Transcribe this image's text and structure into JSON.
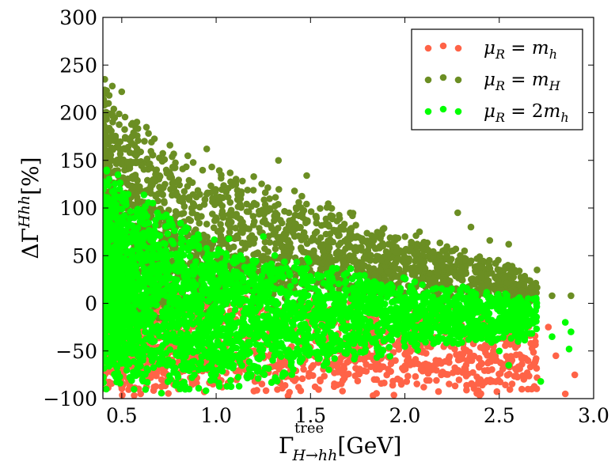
{
  "chart_data": {
    "type": "scatter",
    "title": "",
    "xlabel": "Γ^tree_{H→hh}[GeV]",
    "xlabel_main": "Γ",
    "xlabel_sup": "tree",
    "xlabel_sub": "H→hh",
    "xlabel_unit": "[GeV]",
    "ylabel": "ΔΓ^{Hhh}[%]",
    "ylabel_main": "ΔΓ",
    "ylabel_sup": "Hhh",
    "ylabel_unit": "[%]",
    "xlim": [
      0.4,
      3.0
    ],
    "ylim": [
      -100,
      300
    ],
    "xticks": [
      0.5,
      1.0,
      1.5,
      2.0,
      2.5,
      3.0
    ],
    "xtick_labels": [
      "0.5",
      "1.0",
      "1.5",
      "2.0",
      "2.5",
      "3.0"
    ],
    "yticks": [
      -100,
      -50,
      0,
      50,
      100,
      150,
      200,
      250,
      300
    ],
    "ytick_labels": [
      "−100",
      "−50",
      "0",
      "50",
      "100",
      "150",
      "200",
      "250",
      "300"
    ],
    "grid": false,
    "legend_position": "top-right",
    "series": [
      {
        "name": "μR = mh",
        "color": "#ff6347",
        "upper_envelope": [
          [
            0.4,
            40
          ],
          [
            1.0,
            25
          ],
          [
            1.5,
            12
          ],
          [
            2.0,
            5
          ],
          [
            2.5,
            -10
          ],
          [
            2.9,
            -20
          ]
        ],
        "lower_envelope": [
          [
            0.4,
            -100
          ],
          [
            2.9,
            -100
          ]
        ],
        "points": [
          [
            2.55,
            -30
          ],
          [
            2.62,
            -58
          ],
          [
            2.7,
            -78
          ],
          [
            2.76,
            -25
          ],
          [
            2.8,
            -55
          ],
          [
            2.85,
            -95
          ],
          [
            2.9,
            -75
          ],
          [
            2.47,
            -45
          ],
          [
            2.4,
            -80
          ],
          [
            2.33,
            -60
          ],
          [
            2.2,
            -72
          ],
          [
            2.1,
            -88
          ],
          [
            1.95,
            -60
          ],
          [
            1.85,
            -80
          ],
          [
            2.6,
            -5
          ],
          [
            2.5,
            2
          ],
          [
            0.6,
            -95
          ],
          [
            0.8,
            -90
          ],
          [
            1.2,
            -92
          ]
        ]
      },
      {
        "name": "μR = mH",
        "color": "#6b8e23",
        "upper_envelope": [
          [
            0.4,
            238
          ],
          [
            0.6,
            200
          ],
          [
            0.8,
            165
          ],
          [
            1.0,
            150
          ],
          [
            1.2,
            140
          ],
          [
            1.5,
            118
          ],
          [
            1.8,
            90
          ],
          [
            2.0,
            80
          ],
          [
            2.2,
            68
          ],
          [
            2.4,
            55
          ],
          [
            2.6,
            38
          ],
          [
            2.75,
            12
          ],
          [
            2.9,
            10
          ]
        ],
        "lower_envelope": [
          [
            0.4,
            -40
          ],
          [
            1.0,
            -20
          ],
          [
            1.5,
            -5
          ],
          [
            2.0,
            0
          ],
          [
            2.5,
            0
          ],
          [
            2.9,
            0
          ]
        ],
        "points": [
          [
            0.41,
            235
          ],
          [
            0.45,
            228
          ],
          [
            0.5,
            222
          ],
          [
            0.62,
            170
          ],
          [
            0.77,
            143
          ],
          [
            0.95,
            162
          ],
          [
            1.33,
            150
          ],
          [
            1.48,
            134
          ],
          [
            2.28,
            95
          ],
          [
            2.35,
            80
          ],
          [
            2.45,
            66
          ],
          [
            2.55,
            62
          ],
          [
            2.7,
            35
          ],
          [
            2.78,
            8
          ],
          [
            2.88,
            8
          ],
          [
            2.65,
            5
          ]
        ]
      },
      {
        "name": "μR = 2mh",
        "color": "#00ff00",
        "upper_envelope": [
          [
            0.4,
            145
          ],
          [
            0.6,
            120
          ],
          [
            0.8,
            95
          ],
          [
            1.0,
            75
          ],
          [
            1.2,
            62
          ],
          [
            1.5,
            48
          ],
          [
            1.8,
            40
          ],
          [
            2.0,
            28
          ],
          [
            2.3,
            22
          ],
          [
            2.5,
            15
          ],
          [
            2.7,
            8
          ],
          [
            2.9,
            0
          ]
        ],
        "lower_envelope": [
          [
            0.4,
            -100
          ],
          [
            1.0,
            -98
          ],
          [
            1.5,
            -75
          ],
          [
            1.8,
            -65
          ],
          [
            2.0,
            -55
          ],
          [
            2.3,
            -45
          ],
          [
            2.5,
            -42
          ],
          [
            2.9,
            -40
          ]
        ],
        "points": [
          [
            2.88,
            -30
          ],
          [
            2.87,
            -48
          ],
          [
            2.85,
            -20
          ],
          [
            2.78,
            -35
          ],
          [
            2.72,
            -82
          ],
          [
            2.68,
            -18
          ],
          [
            2.6,
            -40
          ],
          [
            2.55,
            -65
          ],
          [
            2.5,
            -50
          ],
          [
            2.45,
            -25
          ],
          [
            2.4,
            -5
          ],
          [
            0.42,
            140
          ],
          [
            0.48,
            135
          ],
          [
            1.25,
            70
          ]
        ]
      }
    ]
  },
  "legend": {
    "items": [
      {
        "mu": "μ",
        "sub": "R",
        "eq": " = ",
        "rhs_main": "m",
        "rhs_pre": "",
        "rhs_sub": "h",
        "color": "#ff6347"
      },
      {
        "mu": "μ",
        "sub": "R",
        "eq": " = ",
        "rhs_main": "m",
        "rhs_pre": "",
        "rhs_sub": "H",
        "color": "#6b8e23"
      },
      {
        "mu": "μ",
        "sub": "R",
        "eq": " = ",
        "rhs_main": "m",
        "rhs_pre": "2",
        "rhs_sub": "h",
        "color": "#00ff00"
      }
    ]
  }
}
